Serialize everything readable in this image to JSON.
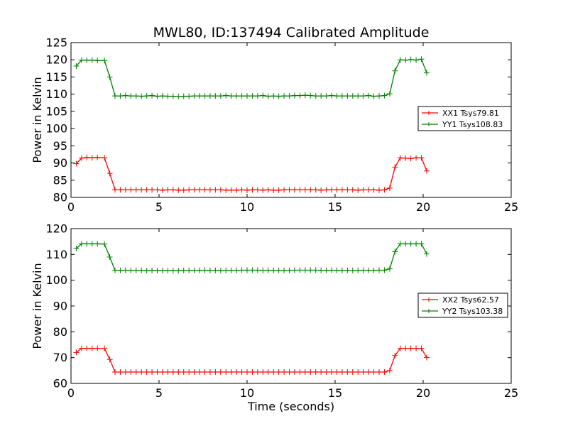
{
  "figure_title": "MWL80, ID:137494 Calibrated Amplitude",
  "chart_data": [
    {
      "type": "line",
      "title": "MWL80, ID:137494 Calibrated Amplitude",
      "xlabel": "",
      "ylabel": "Power in Kelvin",
      "xlim": [
        0,
        25
      ],
      "ylim": [
        80,
        125
      ],
      "xticks": [
        0,
        5,
        10,
        15,
        20,
        25
      ],
      "yticks": [
        80,
        85,
        90,
        95,
        100,
        105,
        110,
        115,
        120,
        125
      ],
      "grid": false,
      "legend_position": "center-right",
      "x": [
        0.3,
        0.6,
        0.9,
        1.2,
        1.5,
        1.9,
        2.2,
        2.5,
        2.8,
        3.1,
        3.4,
        3.7,
        4.0,
        4.3,
        4.6,
        4.9,
        5.2,
        5.5,
        5.8,
        6.1,
        6.4,
        6.7,
        7.0,
        7.3,
        7.6,
        7.9,
        8.2,
        8.5,
        8.8,
        9.1,
        9.4,
        9.7,
        10.0,
        10.3,
        10.6,
        10.9,
        11.2,
        11.5,
        11.8,
        12.1,
        12.4,
        12.7,
        13.0,
        13.3,
        13.6,
        13.9,
        14.2,
        14.5,
        14.8,
        15.1,
        15.4,
        15.7,
        16.0,
        16.3,
        16.6,
        16.9,
        17.2,
        17.5,
        17.8,
        18.1,
        18.4,
        18.7,
        19.0,
        19.3,
        19.6,
        19.9,
        20.2
      ],
      "series": [
        {
          "name": "XX1 Tsys79.81",
          "color": "#ff0000",
          "values": [
            89.8,
            91.4,
            91.6,
            91.5,
            91.6,
            91.5,
            87.0,
            82.2,
            82.2,
            82.2,
            82.2,
            82.2,
            82.2,
            82.2,
            82.2,
            82.2,
            82.1,
            82.2,
            82.2,
            82.1,
            82.1,
            82.2,
            82.2,
            82.2,
            82.2,
            82.2,
            82.2,
            82.2,
            82.1,
            82.1,
            82.1,
            82.2,
            82.1,
            82.2,
            82.2,
            82.1,
            82.2,
            82.1,
            82.1,
            82.2,
            82.2,
            82.2,
            82.2,
            82.2,
            82.2,
            82.2,
            82.1,
            82.2,
            82.2,
            82.2,
            82.2,
            82.2,
            82.2,
            82.1,
            82.2,
            82.2,
            82.2,
            82.1,
            82.2,
            82.7,
            88.8,
            91.5,
            91.4,
            91.3,
            91.5,
            91.5,
            87.7
          ]
        },
        {
          "name": "YY1 Tsys108.83",
          "color": "#008000",
          "values": [
            118.2,
            119.9,
            119.9,
            119.9,
            119.8,
            119.8,
            115.0,
            109.5,
            109.5,
            109.6,
            109.5,
            109.5,
            109.4,
            109.5,
            109.6,
            109.4,
            109.5,
            109.4,
            109.4,
            109.3,
            109.4,
            109.4,
            109.5,
            109.5,
            109.5,
            109.5,
            109.5,
            109.5,
            109.6,
            109.5,
            109.5,
            109.5,
            109.5,
            109.5,
            109.5,
            109.6,
            109.4,
            109.5,
            109.4,
            109.5,
            109.5,
            109.6,
            109.6,
            109.7,
            109.6,
            109.5,
            109.5,
            109.5,
            109.6,
            109.5,
            109.5,
            109.5,
            109.5,
            109.5,
            109.5,
            109.6,
            109.4,
            109.5,
            109.6,
            110.1,
            116.8,
            120.0,
            119.9,
            120.1,
            119.9,
            120.2,
            116.2
          ]
        }
      ]
    },
    {
      "type": "line",
      "title": "",
      "xlabel": "Time (seconds)",
      "ylabel": "Power in Kelvin",
      "xlim": [
        0,
        25
      ],
      "ylim": [
        60,
        120
      ],
      "xticks": [
        0,
        5,
        10,
        15,
        20,
        25
      ],
      "yticks": [
        60,
        70,
        80,
        90,
        100,
        110,
        120
      ],
      "grid": false,
      "legend_position": "center-right",
      "x": [
        0.3,
        0.6,
        0.9,
        1.2,
        1.5,
        1.9,
        2.2,
        2.5,
        2.8,
        3.1,
        3.4,
        3.7,
        4.0,
        4.3,
        4.6,
        4.9,
        5.2,
        5.5,
        5.8,
        6.1,
        6.4,
        6.7,
        7.0,
        7.3,
        7.6,
        7.9,
        8.2,
        8.5,
        8.8,
        9.1,
        9.4,
        9.7,
        10.0,
        10.3,
        10.6,
        10.9,
        11.2,
        11.5,
        11.8,
        12.1,
        12.4,
        12.7,
        13.0,
        13.3,
        13.6,
        13.9,
        14.2,
        14.5,
        14.8,
        15.1,
        15.4,
        15.7,
        16.0,
        16.3,
        16.6,
        16.9,
        17.2,
        17.5,
        17.8,
        18.1,
        18.4,
        18.7,
        19.0,
        19.3,
        19.6,
        19.9,
        20.2
      ],
      "series": [
        {
          "name": "XX2 Tsys62.57",
          "color": "#ff0000",
          "values": [
            72.0,
            73.6,
            73.6,
            73.6,
            73.6,
            73.6,
            69.3,
            64.4,
            64.4,
            64.4,
            64.4,
            64.4,
            64.4,
            64.4,
            64.4,
            64.4,
            64.4,
            64.4,
            64.4,
            64.4,
            64.4,
            64.4,
            64.4,
            64.4,
            64.4,
            64.4,
            64.4,
            64.4,
            64.4,
            64.4,
            64.4,
            64.4,
            64.4,
            64.4,
            64.4,
            64.4,
            64.4,
            64.4,
            64.4,
            64.4,
            64.4,
            64.4,
            64.4,
            64.4,
            64.4,
            64.4,
            64.4,
            64.4,
            64.4,
            64.4,
            64.4,
            64.4,
            64.4,
            64.4,
            64.4,
            64.4,
            64.4,
            64.4,
            64.4,
            65.0,
            70.8,
            73.6,
            73.6,
            73.6,
            73.6,
            73.6,
            70.0
          ]
        },
        {
          "name": "YY2 Tsys103.38",
          "color": "#008000",
          "values": [
            112.3,
            114.1,
            114.1,
            114.1,
            114.1,
            114.0,
            109.0,
            103.8,
            103.8,
            103.9,
            103.8,
            103.8,
            103.8,
            103.7,
            103.8,
            103.7,
            103.7,
            103.7,
            103.7,
            103.7,
            103.8,
            103.8,
            103.8,
            103.8,
            103.9,
            103.8,
            103.8,
            103.7,
            103.8,
            103.8,
            103.8,
            103.9,
            103.9,
            103.9,
            103.9,
            103.8,
            103.8,
            103.8,
            103.8,
            103.8,
            103.8,
            103.9,
            103.9,
            103.9,
            103.9,
            103.9,
            103.8,
            103.8,
            103.9,
            103.8,
            103.8,
            103.8,
            103.8,
            103.8,
            103.8,
            103.8,
            103.8,
            103.9,
            103.9,
            104.4,
            111.1,
            114.1,
            114.1,
            114.1,
            114.1,
            114.1,
            110.2
          ]
        }
      ]
    }
  ]
}
